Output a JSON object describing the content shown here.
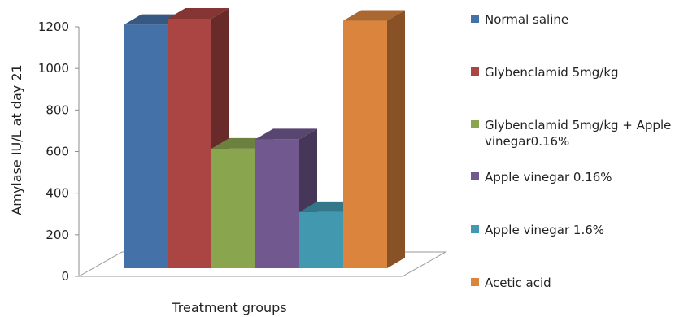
{
  "chart_data": {
    "type": "bar",
    "style": "3d-column",
    "xlabel": "Treatment groups",
    "ylabel": "Amylase IU/L at day 21",
    "ylim": [
      0,
      1200
    ],
    "yticks": [
      "0",
      "200",
      "400",
      "600",
      "800",
      "1000",
      "1200"
    ],
    "grid": false,
    "legend_position": "right",
    "series": [
      {
        "name": "Normal saline",
        "value": 1170,
        "color": "#4472A8",
        "legend_lines": [
          "Normal saline"
        ]
      },
      {
        "name": "Glybenclamid 5mg/kg",
        "value": 1200,
        "color": "#AA4543",
        "legend_lines": [
          "Glybenclamid 5mg/kg"
        ]
      },
      {
        "name": "Glybenclamid 5mg/kg + Apple vinegar0.16%",
        "value": 575,
        "color": "#89A54E",
        "legend_lines": [
          "Glybenclamid 5mg/kg + Apple",
          "vinegar0.16%"
        ]
      },
      {
        "name": "Apple vinegar 0.16%",
        "value": 620,
        "color": "#71588F",
        "legend_lines": [
          "Apple vinegar 0.16%"
        ]
      },
      {
        "name": "Apple vinegar 1.6%",
        "value": 270,
        "color": "#4198AF",
        "legend_lines": [
          "Apple vinegar 1.6%"
        ]
      },
      {
        "name": "Acetic acid",
        "value": 1190,
        "color": "#DB843D",
        "legend_lines": [
          "Acetic acid"
        ]
      }
    ]
  }
}
